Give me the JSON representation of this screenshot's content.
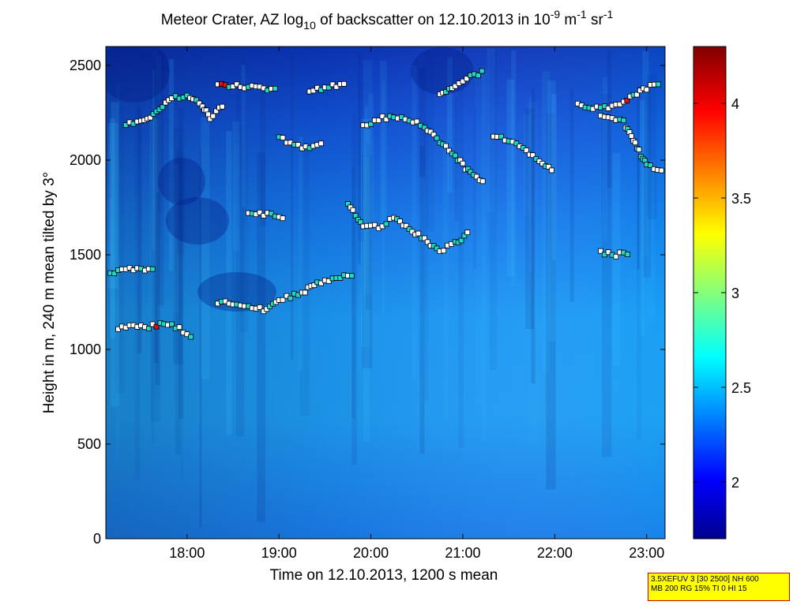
{
  "chart_data": {
    "type": "heatmap",
    "title": "Meteor Crater, AZ log10 of backscatter on 12.10.2013 in 10-9 m-1 sr-1",
    "title_parts": {
      "a": "Meteor Crater, AZ log",
      "sub10": "10",
      "b": " of backscatter on 12.10.2013 in 10",
      "sup9": "-9",
      "c": " m",
      "sup1a": "-1",
      "d": " sr",
      "sup1b": "-1"
    },
    "xlabel": "Time on 12.10.2013, 1200 s mean",
    "ylabel": "Height in m, 240 m mean tilted by 3°",
    "x_ticks": [
      "18:00",
      "19:00",
      "20:00",
      "21:00",
      "22:00",
      "23:00"
    ],
    "y_ticks": [
      "0",
      "500",
      "1000",
      "1500",
      "2000",
      "2500"
    ],
    "xlim": [
      "17:07",
      "23:12"
    ],
    "ylim": [
      0,
      2600
    ],
    "colorbar": {
      "ticks": [
        "2",
        "2.5",
        "3",
        "3.5",
        "4"
      ],
      "range": [
        1.7,
        4.3
      ],
      "colormap": "jet"
    },
    "grid": false,
    "markers": [
      {
        "name": "segment-1",
        "color": "white",
        "points": [
          [
            "17:10",
            1400
          ],
          [
            "17:15",
            1410
          ],
          [
            "17:20",
            1420
          ],
          [
            "17:30",
            1430
          ],
          [
            "17:40",
            1410
          ]
        ]
      },
      {
        "name": "segment-2",
        "color": "white",
        "points": [
          [
            "17:15",
            1110
          ],
          [
            "17:25",
            1130
          ],
          [
            "17:35",
            1120
          ],
          [
            "17:45",
            1140
          ],
          [
            "17:55",
            1110
          ],
          [
            "18:00",
            1080
          ],
          [
            "18:05",
            1060
          ]
        ]
      },
      {
        "name": "segment-3",
        "color": "white",
        "points": [
          [
            "17:20",
            2190
          ],
          [
            "17:30",
            2200
          ],
          [
            "17:40",
            2250
          ],
          [
            "17:50",
            2330
          ],
          [
            "18:00",
            2340
          ],
          [
            "18:10",
            2290
          ],
          [
            "18:15",
            2220
          ],
          [
            "18:25",
            2300
          ]
        ]
      },
      {
        "name": "segment-4",
        "color": "white",
        "points": [
          [
            "18:20",
            1250
          ],
          [
            "18:35",
            1240
          ],
          [
            "18:50",
            1210
          ],
          [
            "19:00",
            1260
          ],
          [
            "19:15",
            1300
          ],
          [
            "19:25",
            1350
          ],
          [
            "19:40",
            1380
          ],
          [
            "19:50",
            1390
          ]
        ]
      },
      {
        "name": "segment-5",
        "color": "white",
        "points": [
          [
            "18:20",
            2400
          ],
          [
            "18:35",
            2390
          ],
          [
            "18:50",
            2380
          ],
          [
            "19:00",
            2370
          ]
        ]
      },
      {
        "name": "segment-6",
        "color": "white",
        "points": [
          [
            "18:40",
            1720
          ],
          [
            "18:55",
            1710
          ],
          [
            "19:05",
            1700
          ]
        ]
      },
      {
        "name": "segment-7",
        "color": "white",
        "points": [
          [
            "19:00",
            2120
          ],
          [
            "19:10",
            2080
          ],
          [
            "19:20",
            2060
          ],
          [
            "19:30",
            2100
          ]
        ]
      },
      {
        "name": "segment-8",
        "color": "white",
        "points": [
          [
            "19:20",
            2370
          ],
          [
            "19:35",
            2390
          ],
          [
            "19:45",
            2400
          ]
        ]
      },
      {
        "name": "segment-9",
        "color": "white",
        "points": [
          [
            "19:45",
            1760
          ],
          [
            "19:55",
            1660
          ],
          [
            "20:05",
            1650
          ],
          [
            "20:15",
            1690
          ],
          [
            "20:25",
            1640
          ],
          [
            "20:35",
            1580
          ],
          [
            "20:45",
            1520
          ],
          [
            "20:55",
            1560
          ],
          [
            "21:05",
            1620
          ]
        ]
      },
      {
        "name": "segment-10",
        "color": "white",
        "points": [
          [
            "19:55",
            2180
          ],
          [
            "20:05",
            2220
          ],
          [
            "20:20",
            2230
          ],
          [
            "20:35",
            2180
          ],
          [
            "20:45",
            2100
          ],
          [
            "20:55",
            2020
          ],
          [
            "21:05",
            1930
          ],
          [
            "21:15",
            1870
          ]
        ]
      },
      {
        "name": "segment-11",
        "color": "white",
        "points": [
          [
            "20:45",
            2350
          ],
          [
            "20:55",
            2400
          ],
          [
            "21:05",
            2440
          ],
          [
            "21:15",
            2470
          ]
        ]
      },
      {
        "name": "segment-12",
        "color": "white",
        "points": [
          [
            "21:20",
            2130
          ],
          [
            "21:35",
            2090
          ],
          [
            "21:50",
            2000
          ],
          [
            "22:00",
            1940
          ]
        ]
      },
      {
        "name": "segment-13",
        "color": "white",
        "points": [
          [
            "22:15",
            2290
          ],
          [
            "22:30",
            2270
          ],
          [
            "22:45",
            2310
          ],
          [
            "23:00",
            2380
          ],
          [
            "23:10",
            2410
          ]
        ]
      },
      {
        "name": "segment-14",
        "color": "white",
        "points": [
          [
            "22:30",
            2230
          ],
          [
            "22:45",
            2200
          ],
          [
            "23:00",
            1970
          ],
          [
            "23:12",
            1950
          ]
        ]
      },
      {
        "name": "segment-15",
        "color": "white",
        "points": [
          [
            "22:30",
            1510
          ],
          [
            "22:40",
            1500
          ],
          [
            "22:50",
            1510
          ]
        ]
      }
    ]
  },
  "info_box": {
    "line1": "3.5XEFUV 3 [30 2500] NH 600",
    "line2": "MB 200 RG 15% TI 0 HI 15"
  },
  "colors": {
    "background": "#ffffff",
    "frame": "#000000",
    "marker_outline": "#000000",
    "marker_fill_primary": "#ffffff",
    "marker_fill_secondary": "#22d8c8",
    "marker_fill_high": "#e01010",
    "info_bg": "#ffff00",
    "info_border": "#d00000"
  }
}
